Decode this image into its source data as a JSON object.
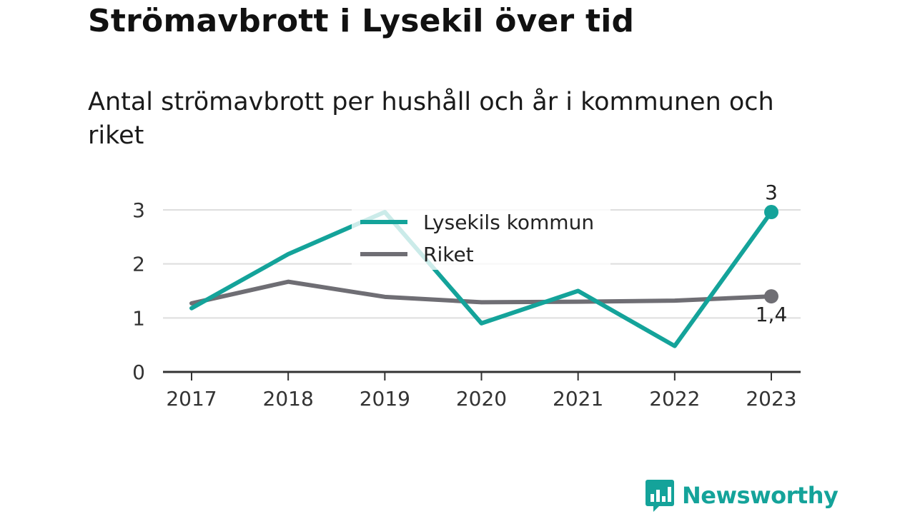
{
  "header": {
    "title": "Strömavbrott i Lysekil över tid",
    "subtitle": "Antal strömavbrott per hushåll och år i kommunen och riket"
  },
  "brand": {
    "name": "Newsworthy",
    "color": "#14a39a",
    "icon": "newsworthy-logo-icon"
  },
  "chart_data": {
    "type": "line",
    "x": [
      "2017",
      "2018",
      "2019",
      "2020",
      "2021",
      "2022",
      "2023"
    ],
    "series": [
      {
        "name": "Lysekils kommun",
        "color": "#14a39a",
        "values": [
          1.18,
          2.18,
          2.96,
          0.9,
          1.5,
          0.48,
          2.96
        ],
        "end_label": "3"
      },
      {
        "name": "Riket",
        "color": "#6f6e74",
        "values": [
          1.27,
          1.67,
          1.39,
          1.29,
          1.3,
          1.32,
          1.4
        ],
        "end_label": "1,4"
      }
    ],
    "yticks": [
      0,
      1,
      2,
      3
    ],
    "ytick_labels": [
      "0",
      "1",
      "2",
      "3"
    ],
    "ylim": [
      0,
      3
    ],
    "grid": true,
    "legend_position": "top-center"
  }
}
